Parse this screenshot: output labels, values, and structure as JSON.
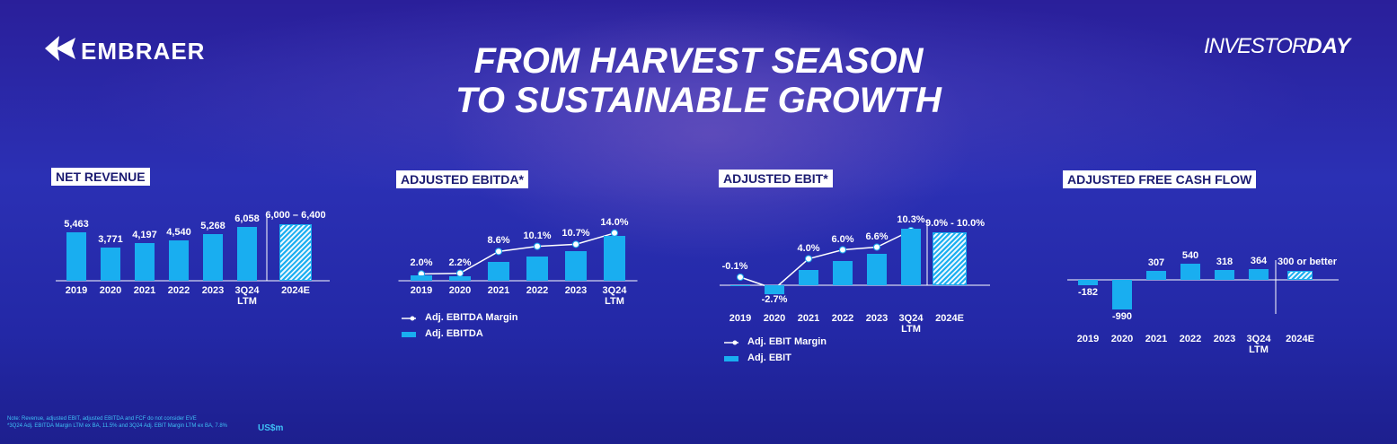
{
  "header": {
    "logo": "EMBRAER",
    "title": [
      "FROM HARVEST SEASON",
      "TO SUSTAINABLE GROWTH"
    ],
    "event": [
      "INVESTOR",
      "DAY"
    ]
  },
  "chart_data": [
    {
      "type": "bar",
      "title": "NET REVENUE",
      "categories": [
        "2019",
        "2020",
        "2021",
        "2022",
        "2023",
        "3Q24 LTM"
      ],
      "values": [
        5463,
        3771,
        4197,
        4540,
        5268,
        6058
      ],
      "value_labels": [
        "5,463",
        "3,771",
        "4,197",
        "4,540",
        "5,268",
        "6,058"
      ],
      "color": "#19aef0",
      "guidance": {
        "category": "2024E",
        "label": "6,000 – 6,400",
        "low": 6000,
        "high": 6400
      }
    },
    {
      "type": "bar_line",
      "title": "ADJUSTED EBITDA*",
      "categories": [
        "2019",
        "2020",
        "2021",
        "2022",
        "2023",
        "3Q24 LTM"
      ],
      "series": [
        {
          "name": "Adj. EBITDA Margin",
          "kind": "line",
          "color": "#ffffff",
          "values": [
            2.0,
            2.2,
            8.6,
            10.1,
            10.7,
            14.0
          ],
          "value_labels": [
            "2.0%",
            "2.2%",
            "8.6%",
            "10.1%",
            "10.7%",
            "14.0%"
          ]
        },
        {
          "name": "Adj. EBITDA",
          "kind": "bar",
          "color": "#19aef0",
          "values": [
            109,
            83,
            361,
            459,
            564,
            848
          ]
        }
      ]
    },
    {
      "type": "bar_line",
      "title": "ADJUSTED EBIT*",
      "categories": [
        "2019",
        "2020",
        "2021",
        "2022",
        "2023",
        "3Q24 LTM"
      ],
      "series": [
        {
          "name": "Adj. EBIT Margin",
          "kind": "line",
          "color": "#ffffff",
          "values": [
            -0.1,
            -2.7,
            4.0,
            6.0,
            6.6,
            10.3
          ],
          "value_labels": [
            "-0.1%",
            "-2.7%",
            "4.0%",
            "6.0%",
            "6.6%",
            "10.3%"
          ]
        },
        {
          "name": "Adj. EBIT",
          "kind": "bar",
          "color": "#19aef0",
          "values": [
            -5,
            -102,
            168,
            272,
            348,
            624
          ]
        }
      ],
      "guidance": {
        "category": "2024E",
        "label": "9.0% - 10.0%",
        "low": 9.0,
        "high": 10.0
      }
    },
    {
      "type": "bar",
      "title": "ADJUSTED FREE CASH FLOW",
      "categories": [
        "2019",
        "2020",
        "2021",
        "2022",
        "2023",
        "3Q24 LTM"
      ],
      "values": [
        -182,
        -990,
        307,
        540,
        318,
        364
      ],
      "value_labels": [
        "-182",
        "-990",
        "307",
        "540",
        "318",
        "364"
      ],
      "color": "#19aef0",
      "guidance": {
        "category": "2024E",
        "label": "300 or better",
        "value": 300
      }
    }
  ],
  "footer": {
    "notes": [
      "Note: Revenue, adjusted EBIT, adjusted EBITDA and FCF do not consider EVE",
      "*3Q24 Adj. EBITDA Margin LTM ex BA, 11.5% and 3Q24 Adj. EBIT Margin LTM ex BA, 7.8%"
    ],
    "unit": "US$m"
  }
}
